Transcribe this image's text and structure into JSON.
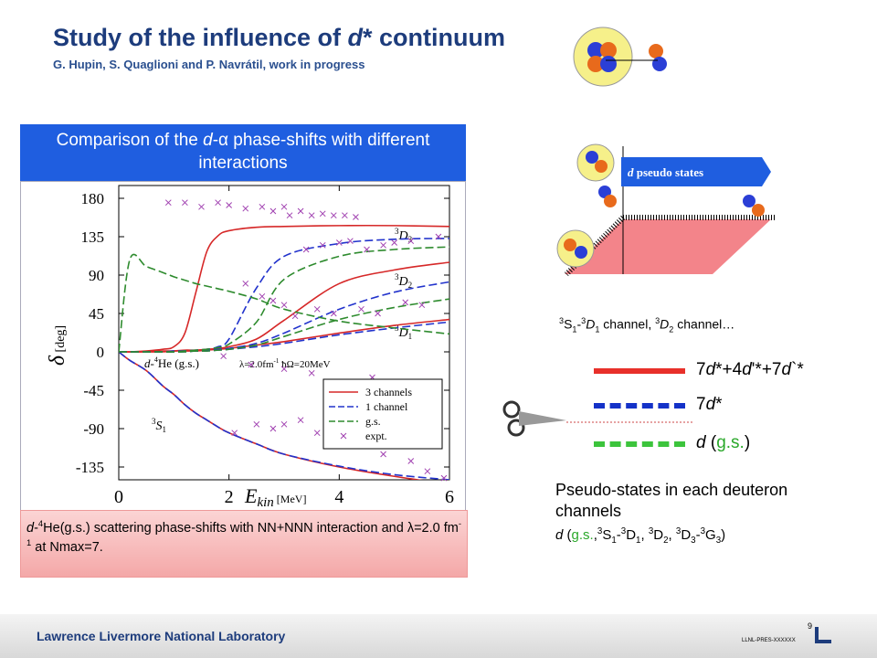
{
  "header": {
    "title": [
      "Study of the influence of ",
      "d",
      "* continuum"
    ],
    "subtitle": "G. Hupin, S. Quaglioni and P. Navrátil, work in progress"
  },
  "banner": [
    "Comparison of the ",
    "d",
    "-α phase-shifts with different interactions"
  ],
  "caption": [
    "d",
    "-",
    "4",
    "He(g.s.) scattering phase-shifts with NN+NNN interaction and ",
    "λ",
    "=2.0 fm",
    "-1",
    " at Nmax=7."
  ],
  "diagram": {
    "label": [
      "d",
      " pseudo states"
    ],
    "channels": [
      "3",
      "S",
      "1",
      "-",
      "3",
      "D",
      "1",
      " channel, ",
      "3",
      "D",
      "2",
      " channel…"
    ]
  },
  "legend": [
    {
      "label": [
        "7",
        "d",
        "*+4",
        "d",
        "'*+7",
        "d",
        "`*"
      ],
      "color": "#e8302a",
      "style": "solid"
    },
    {
      "label": [
        "7",
        "d",
        "*"
      ],
      "color": "#1432c8",
      "style": "dashed"
    },
    {
      "label": [
        "d",
        " (",
        "g.s.",
        ")"
      ],
      "color": "#3cc43c",
      "style": "dashed"
    }
  ],
  "notes": {
    "heading": "Pseudo-states in each deuteron channels",
    "channels": [
      "d",
      " (",
      "g.s.",
      ",",
      "3",
      "S",
      "1",
      "-",
      "3",
      "D",
      "1",
      ", ",
      "3",
      "D",
      "2",
      ", ",
      "3",
      "D",
      "3",
      "-",
      "3",
      "G",
      "3",
      ")"
    ]
  },
  "footer": {
    "lab": "Lawrence Livermore National Laboratory",
    "page": "9",
    "code": "LLNL-PRES-XXXXXX"
  },
  "chart_data": {
    "type": "line",
    "ylabel": [
      "δ",
      " [deg]"
    ],
    "xlabel": [
      "E",
      "kin",
      " [MeV]"
    ],
    "annotations": {
      "system": [
        "d",
        "-",
        "4",
        "He (g.s.)"
      ],
      "params": [
        "λ",
        "=2.0fm",
        "-1",
        " ħΩ=20MeV"
      ],
      "d3": [
        "3",
        "D",
        "3"
      ],
      "d2": [
        "3",
        "D",
        "2"
      ],
      "d1": [
        "3",
        "D",
        "1"
      ],
      "s1": [
        "3",
        "S",
        "1"
      ]
    },
    "xlim": [
      0,
      6
    ],
    "ylim": [
      -150,
      195
    ],
    "xticks": [
      0,
      2,
      4,
      6
    ],
    "yticks": [
      180,
      135,
      90,
      45,
      0,
      -45,
      -90,
      -135
    ],
    "x": [
      0,
      0.2,
      0.5,
      0.8,
      1,
      1.2,
      1.4,
      1.6,
      1.8,
      2,
      2.5,
      3,
      4,
      5,
      6
    ],
    "series": [
      {
        "name": "3 channels",
        "color": "#d62828",
        "dash": "solid",
        "values": [
          [
            0,
            0,
            1,
            3,
            6,
            22,
            70,
            118,
            136,
            142,
            146,
            147,
            148,
            148,
            147
          ],
          [
            0,
            0,
            0,
            1,
            1,
            2,
            2,
            3,
            4,
            6,
            15,
            37,
            80,
            96,
            105
          ],
          [
            0,
            0,
            0,
            0,
            1,
            1,
            1,
            2,
            3,
            4,
            8,
            12,
            22,
            31,
            38
          ],
          [
            0,
            -10,
            -22,
            -40,
            -50,
            -62,
            -72,
            -80,
            -88,
            -95,
            -108,
            -120,
            -135,
            -146,
            -155
          ]
        ]
      },
      {
        "name": "1 channel",
        "color": "#2233cc",
        "dash": "dashed",
        "values": [
          [
            0,
            0,
            0,
            0,
            1,
            1,
            2,
            3,
            6,
            15,
            75,
            112,
            127,
            132,
            133
          ],
          [
            0,
            0,
            0,
            0,
            0,
            1,
            1,
            2,
            3,
            4,
            10,
            22,
            50,
            70,
            82
          ],
          [
            0,
            0,
            0,
            0,
            0,
            0,
            1,
            1,
            2,
            3,
            6,
            10,
            20,
            28,
            35
          ],
          [
            0,
            -10,
            -22,
            -40,
            -50,
            -62,
            -72,
            -80,
            -88,
            -95,
            -108,
            -120,
            -134,
            -144,
            -150
          ]
        ]
      },
      {
        "name": "g.s.",
        "color": "#2e8b2e",
        "dash": "dashed",
        "values": [
          [
            0,
            0,
            0,
            0,
            0,
            1,
            2,
            3,
            5,
            9,
            35,
            85,
            112,
            120,
            123
          ],
          [
            0,
            0,
            0,
            0,
            0,
            0,
            1,
            1,
            2,
            3,
            8,
            18,
            38,
            52,
            62
          ],
          [
            0,
            108,
            100,
            93,
            88,
            84,
            80,
            77,
            74,
            71,
            62,
            50,
            36,
            28,
            21
          ]
        ]
      },
      {
        "name": "expt.",
        "color": "#a040b0",
        "marker": "x",
        "x": [
          0.9,
          1.2,
          1.5,
          1.8,
          2.0,
          2.3,
          2.6,
          2.8,
          3.0,
          3.1,
          3.3,
          3.5,
          3.7,
          3.9,
          4.1,
          4.3,
          2.3,
          2.6,
          2.8,
          3.0,
          3.2,
          3.6,
          3.9,
          4.4,
          4.7,
          5.2,
          5.5,
          4.5,
          4.8,
          5.0,
          5.3,
          5.8,
          3.4,
          3.7,
          4.0,
          4.2,
          1.9,
          2.4,
          3.0,
          3.5,
          4.6,
          2.1,
          2.5,
          2.8,
          3.0,
          3.3,
          3.6,
          4.0,
          4.5,
          4.8,
          5.3,
          5.6,
          5.9
        ],
        "values": [
          175,
          175,
          170,
          175,
          172,
          168,
          170,
          165,
          170,
          160,
          165,
          160,
          162,
          160,
          160,
          158,
          80,
          65,
          60,
          55,
          42,
          50,
          45,
          50,
          45,
          58,
          55,
          120,
          125,
          128,
          130,
          135,
          120,
          125,
          128,
          130,
          -5,
          -15,
          -20,
          -25,
          -30,
          -95,
          -85,
          -90,
          -85,
          -80,
          -95,
          -108,
          -110,
          -120,
          -128,
          -140,
          -148
        ]
      }
    ],
    "legend_corner": "lower right"
  }
}
